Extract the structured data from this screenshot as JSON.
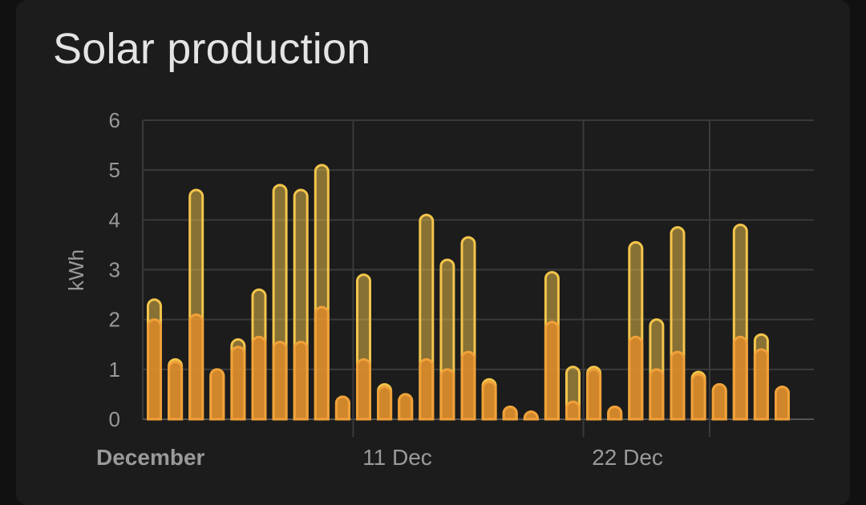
{
  "card": {
    "title": "Solar production"
  },
  "chart_data": {
    "type": "bar",
    "stacked": "overlay",
    "ylabel": "kWh",
    "ylim": [
      0,
      6
    ],
    "yticks": [
      "0",
      "1",
      "2",
      "3",
      "4",
      "5",
      "6"
    ],
    "xticks": [
      {
        "label": "December",
        "day": 1,
        "bold": true
      },
      {
        "label": "11 Dec",
        "day": 11,
        "bold": false
      },
      {
        "label": "22 Dec",
        "day": 22,
        "bold": false
      }
    ],
    "grid": true,
    "days": [
      1,
      2,
      3,
      4,
      5,
      6,
      7,
      8,
      9,
      10,
      11,
      12,
      13,
      14,
      15,
      16,
      17,
      18,
      19,
      20,
      21,
      22,
      23,
      24,
      25,
      26,
      27,
      28,
      29,
      30,
      31
    ],
    "series": [
      {
        "values": [
          2.4,
          1.2,
          4.6,
          1.0,
          1.6,
          2.6,
          4.7,
          4.6,
          5.1,
          0.45,
          2.9,
          0.7,
          0.5,
          4.1,
          3.2,
          3.65,
          0.8,
          0.25,
          0.15,
          2.95,
          1.05,
          1.05,
          0.25,
          3.55,
          2.0,
          3.85,
          0.95,
          0.7,
          3.9,
          1.7,
          0.65
        ],
        "color": "#f3c54b"
      },
      {
        "values": [
          2.0,
          1.15,
          2.1,
          1.0,
          1.45,
          1.65,
          1.55,
          1.55,
          2.25,
          0.45,
          1.2,
          0.65,
          0.5,
          1.2,
          1.0,
          1.35,
          0.75,
          0.25,
          0.15,
          1.95,
          0.35,
          1.0,
          0.25,
          1.65,
          1.0,
          1.35,
          0.9,
          0.7,
          1.65,
          1.4,
          0.65
        ],
        "color": "#f0a139"
      }
    ]
  }
}
